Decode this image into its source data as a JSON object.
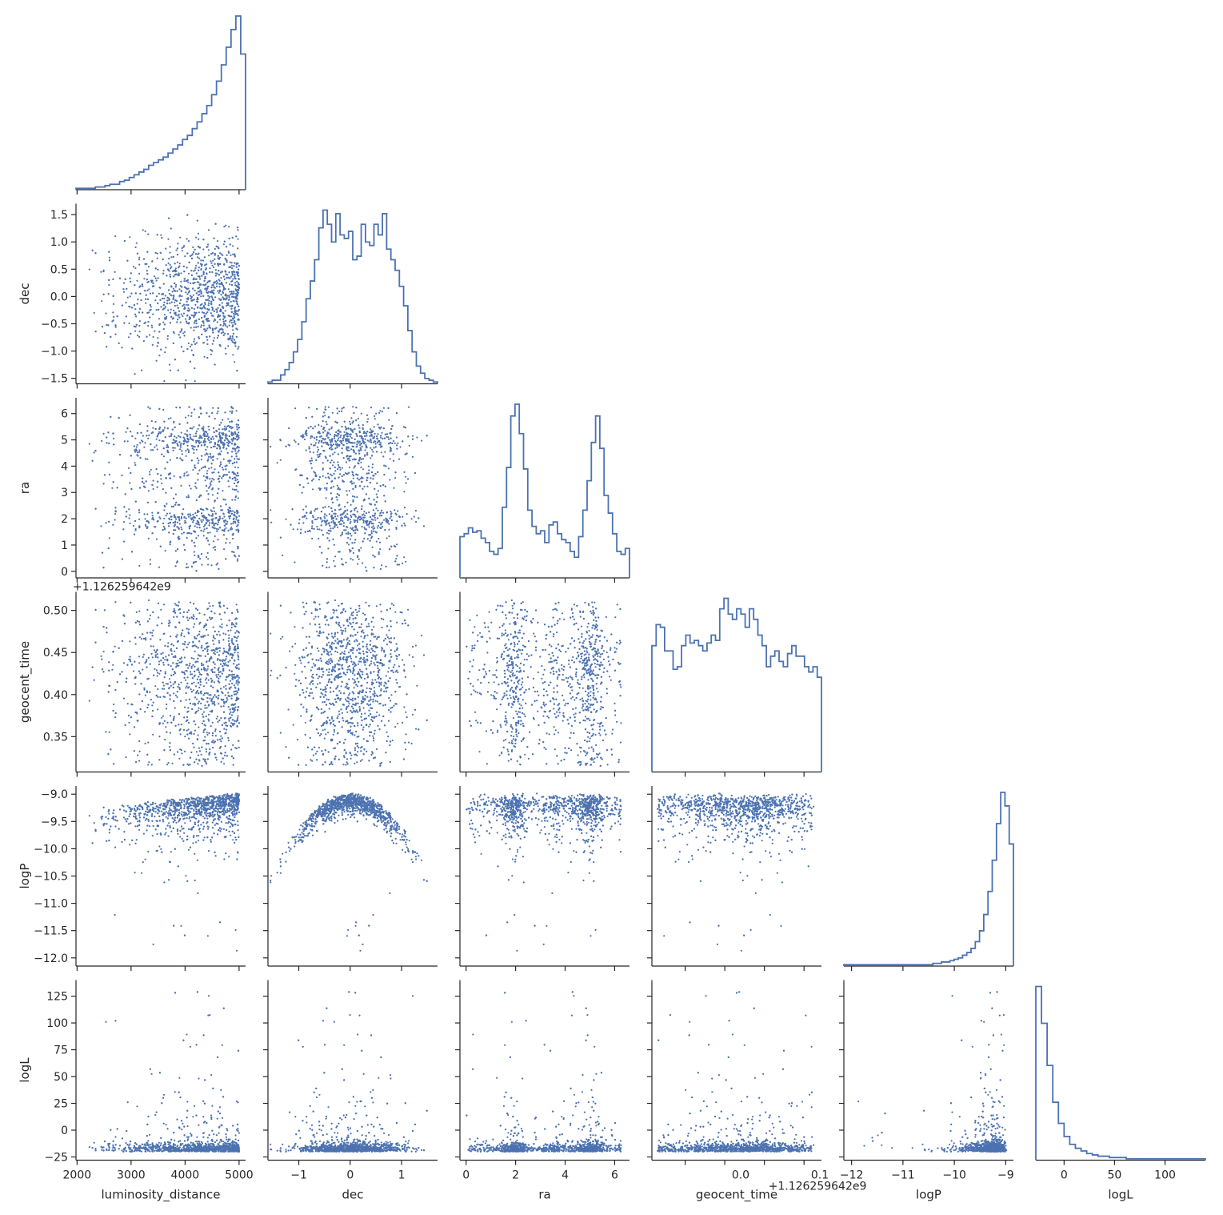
{
  "chart_data": {
    "type": "scatter",
    "title": "",
    "variables": [
      "luminosity_distance",
      "dec",
      "ra",
      "geocent_time",
      "logP",
      "logL"
    ],
    "axis_labels": [
      "luminosity_distance",
      "dec",
      "ra",
      "geocent_time",
      "logP",
      "logL"
    ],
    "offset_text_geocent_time": "+1.126259642e9",
    "offset_text_geocent_time_x": "+1.126259642e9",
    "ranges": [
      [
        1980,
        5120
      ],
      [
        -1.6,
        1.7
      ],
      [
        -0.25,
        6.6
      ],
      [
        0.308,
        0.522
      ],
      [
        -12.15,
        -8.85
      ],
      [
        -28,
        140
      ]
    ],
    "ticks": [
      [
        2000,
        3000,
        4000,
        5000
      ],
      [
        -1,
        0,
        1
      ],
      [
        0,
        2,
        4,
        6
      ],
      [
        0.35,
        0.4,
        0.45,
        0.5
      ],
      [
        -12,
        -11,
        -10,
        -9
      ],
      [
        0,
        50,
        100
      ]
    ],
    "y_ticks": [
      null,
      [
        -1.5,
        -1.0,
        -0.5,
        0.0,
        0.5,
        1.0,
        1.5
      ],
      [
        0,
        1,
        2,
        3,
        4,
        5,
        6
      ],
      [
        0.35,
        0.4,
        0.45,
        0.5
      ],
      [
        -12.0,
        -11.5,
        -11.0,
        -10.5,
        -10.0,
        -9.5,
        -9.0
      ],
      [
        -25,
        0,
        25,
        50,
        75,
        100,
        125
      ]
    ],
    "x_tick_labels": [
      [
        "2000",
        "3000",
        "4000",
        "5000"
      ],
      [
        "−1",
        "0",
        "1"
      ],
      [
        "0",
        "2",
        "4",
        "6"
      ],
      [
        "0.0",
        "0.1"
      ],
      [
        "−12",
        "−11",
        "−10",
        "−9"
      ],
      [
        "0",
        "50",
        "100"
      ]
    ],
    "y_tick_labels": [
      null,
      [
        "−1.5",
        "−1.0",
        "−0.5",
        "0.0",
        "0.5",
        "1.0",
        "1.5"
      ],
      [
        "0",
        "1",
        "2",
        "3",
        "4",
        "5",
        "6"
      ],
      [
        "0.35",
        "0.40",
        "0.45",
        "0.50"
      ],
      [
        "−12.0",
        "−11.5",
        "−11.0",
        "−10.5",
        "−10.0",
        "−9.5",
        "−9.0"
      ],
      [
        "−25",
        "0",
        "25",
        "50",
        "75",
        "100",
        "125"
      ]
    ],
    "geocent_x_tick_values": [
      0.42,
      0.52
    ],
    "hist": {
      "luminosity_distance": [
        1,
        1,
        1,
        1,
        2,
        2,
        3,
        4,
        4,
        6,
        7,
        9,
        11,
        13,
        15,
        18,
        20,
        22,
        24,
        27,
        30,
        33,
        37,
        40,
        45,
        50,
        56,
        62,
        70,
        80,
        92,
        105,
        118,
        128,
        100
      ],
      "dec": [
        1,
        2,
        2,
        5,
        8,
        12,
        18,
        25,
        35,
        48,
        58,
        70,
        88,
        98,
        90,
        80,
        96,
        84,
        82,
        86,
        70,
        72,
        90,
        80,
        78,
        90,
        84,
        96,
        76,
        70,
        64,
        55,
        44,
        30,
        18,
        10,
        6,
        3,
        2,
        1
      ],
      "ra": [
        28,
        30,
        34,
        31,
        32,
        27,
        24,
        18,
        16,
        20,
        48,
        75,
        110,
        118,
        98,
        74,
        46,
        35,
        30,
        32,
        24,
        36,
        38,
        30,
        26,
        24,
        18,
        14,
        28,
        46,
        66,
        92,
        110,
        88,
        56,
        44,
        30,
        18,
        16,
        20
      ],
      "geocent_time": [
        48,
        56,
        55,
        46,
        46,
        39,
        40,
        48,
        52,
        49,
        50,
        48,
        46,
        49,
        52,
        50,
        62,
        66,
        60,
        58,
        62,
        60,
        55,
        62,
        58,
        52,
        48,
        40,
        44,
        46,
        42,
        40,
        45,
        48,
        44,
        44,
        40,
        38,
        40,
        36
      ],
      "logP": [
        1,
        1,
        1,
        1,
        1,
        1,
        1,
        1,
        1,
        1,
        1,
        1,
        1,
        1,
        1,
        1,
        1,
        1,
        1,
        1,
        1,
        2,
        2,
        3,
        3,
        4,
        5,
        6,
        8,
        10,
        13,
        18,
        26,
        38,
        55,
        78,
        105,
        128,
        118,
        90
      ],
      "logL": [
        132,
        104,
        72,
        44,
        28,
        18,
        12,
        9,
        7,
        5,
        4,
        3,
        3,
        2,
        2,
        2,
        1,
        1,
        1,
        1,
        1,
        1,
        1,
        1,
        1,
        1,
        1,
        1,
        1,
        1
      ]
    },
    "scatter_points_per_panel": 1500,
    "marker_color": "#4c72b0",
    "grid": false,
    "legend": "none"
  }
}
